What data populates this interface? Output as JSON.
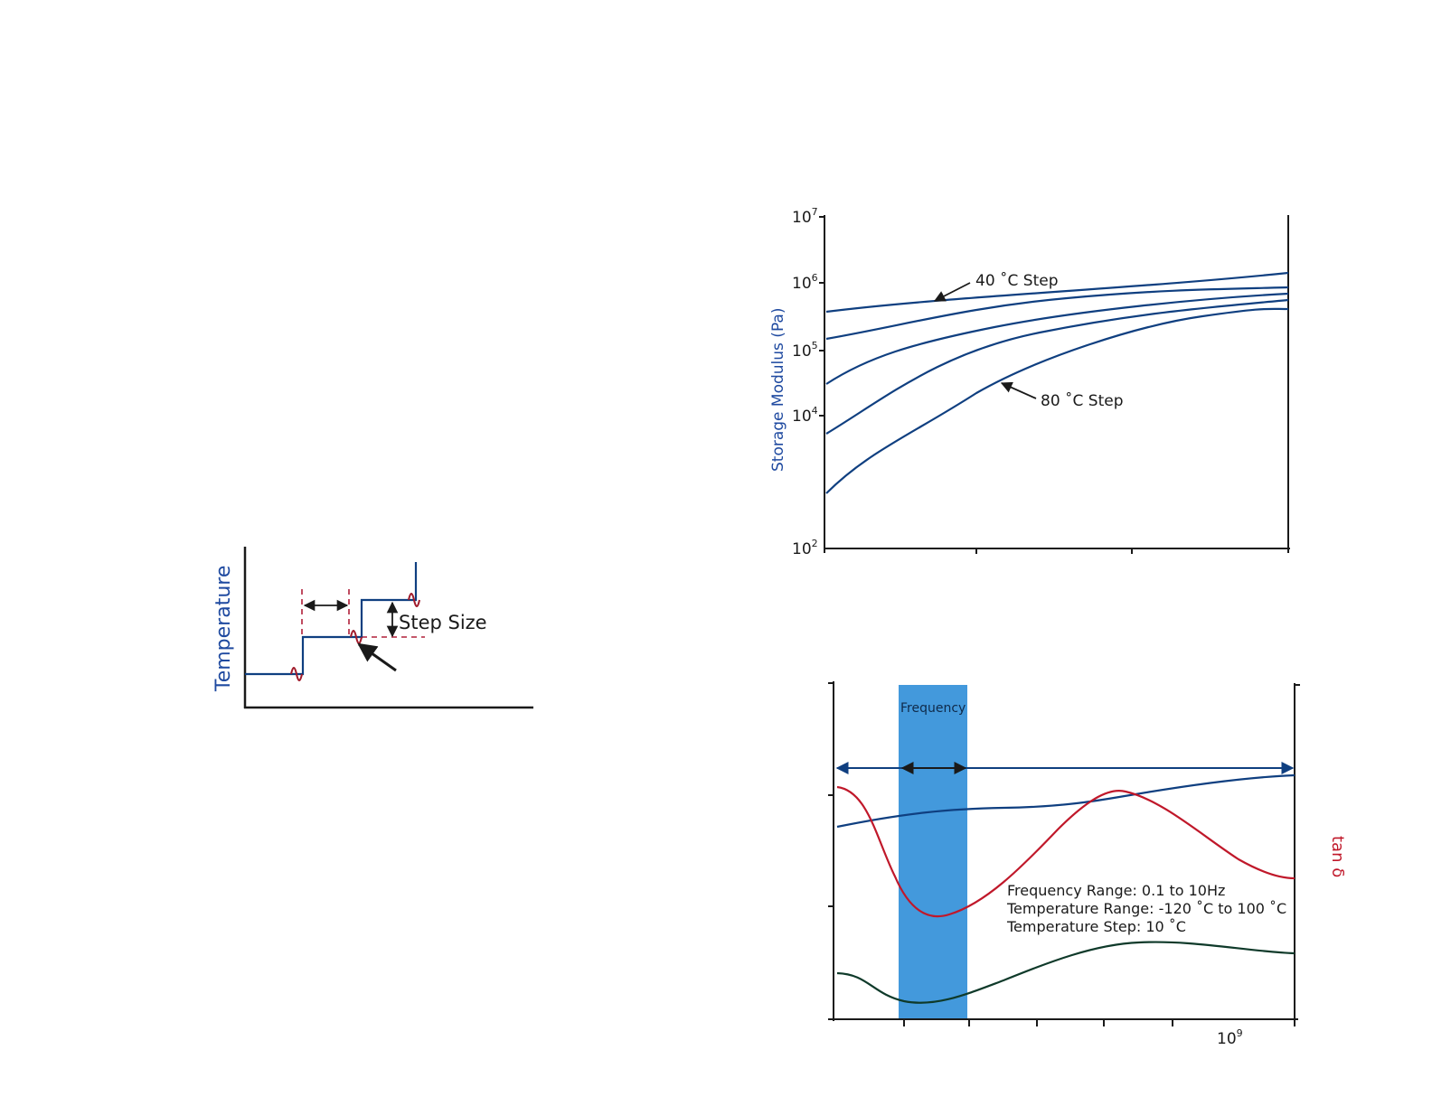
{
  "colors": {
    "axis": "#1a1a1a",
    "curve_blue": "#0f3f80",
    "label_blue": "#1f4aa0",
    "curve_red": "#c0182a",
    "curve_green": "#0f3a2a",
    "highlight_band": "#4399dc",
    "dashed_red": "#b0203a"
  },
  "chart_data": [
    {
      "type": "line",
      "title": "",
      "ylabel": "Temperature",
      "xlabel": "",
      "annotations": [
        "Step Size"
      ],
      "series": [
        {
          "name": "temperature-steps",
          "values": [
            1,
            2,
            3
          ]
        }
      ]
    },
    {
      "type": "line",
      "title": "",
      "ylabel": "Storage Modulus (Pa)",
      "xlabel": "",
      "yscale": "log",
      "ylim": [
        100,
        10000000
      ],
      "y_ticks": [
        {
          "base": "10",
          "exp": "7"
        },
        {
          "base": "10",
          "exp": "6"
        },
        {
          "base": "10",
          "exp": "5"
        },
        {
          "base": "10",
          "exp": "4"
        },
        {
          "base": "10",
          "exp": "2"
        }
      ],
      "annotations": [
        "40 ˚C Step",
        "80 ˚C Step"
      ],
      "series": [
        {
          "name": "40 ˚C Step",
          "trend": "highest, nearly flat"
        },
        {
          "name": "step-2",
          "trend": "rising"
        },
        {
          "name": "step-3",
          "trend": "rising"
        },
        {
          "name": "step-4",
          "trend": "rising"
        },
        {
          "name": "80 ˚C Step",
          "trend": "lowest, steepest rise"
        }
      ]
    },
    {
      "type": "line",
      "title": "",
      "ylabel": "",
      "ylabel_right": "tan δ",
      "x_ticks": [
        {
          "base": "10",
          "exp": "9"
        }
      ],
      "band_label": "Frequency",
      "text_block": [
        "Frequency Range: 0.1 to 10Hz",
        "Temperature Range: -120 ˚C to 100 ˚C",
        "Temperature Step: 10 ˚C"
      ],
      "series": [
        {
          "name": "storage-modulus-master",
          "color": "blue"
        },
        {
          "name": "tan-delta",
          "color": "red"
        },
        {
          "name": "loss-modulus",
          "color": "green"
        }
      ]
    }
  ]
}
